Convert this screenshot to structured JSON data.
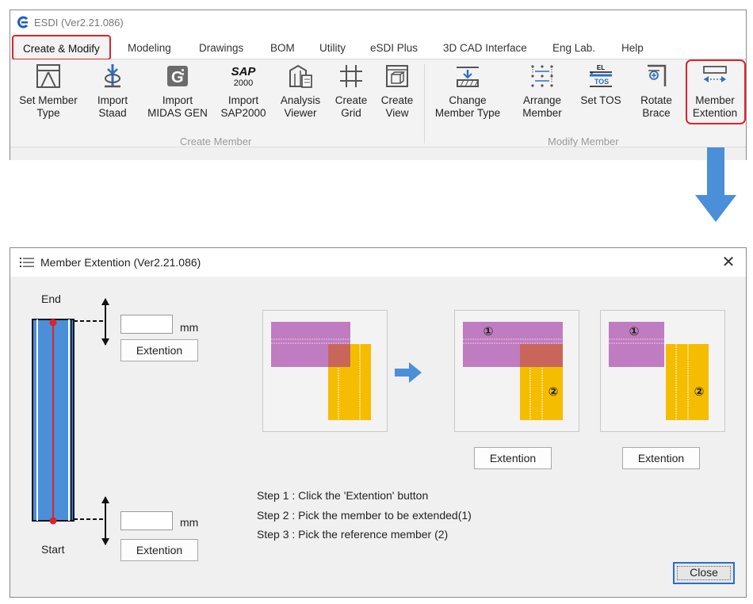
{
  "app": {
    "title": "ESDI (Ver2.21.086)"
  },
  "tabs": [
    {
      "label": "Create & Modify"
    },
    {
      "label": "Modeling"
    },
    {
      "label": "Drawings"
    },
    {
      "label": "BOM"
    },
    {
      "label": "Utility"
    },
    {
      "label": "eSDI Plus"
    },
    {
      "label": "3D CAD Interface"
    },
    {
      "label": "Eng Lab."
    },
    {
      "label": "Help"
    }
  ],
  "groups": {
    "create_member": {
      "label": "Create Member",
      "buttons": [
        {
          "label": "Set Member\nType",
          "icon": "set-member-type-icon"
        },
        {
          "label": "Import\nStaad",
          "icon": "import-staad-icon"
        },
        {
          "label": "Import\nMIDAS GEN",
          "icon": "import-midas-gen-icon"
        },
        {
          "label": "Import\nSAP2000",
          "icon": "import-sap2000-icon"
        },
        {
          "label": "Analysis\nViewer",
          "icon": "analysis-viewer-icon"
        },
        {
          "label": "Create\nGrid",
          "icon": "create-grid-icon"
        },
        {
          "label": "Create\nView",
          "icon": "create-view-icon"
        }
      ]
    },
    "modify_member": {
      "label": "Modify Member",
      "buttons": [
        {
          "label": "Change\nMember Type",
          "icon": "change-member-type-icon"
        },
        {
          "label": "Arrange\nMember",
          "icon": "arrange-member-icon"
        },
        {
          "label": "Set TOS",
          "icon": "set-tos-icon"
        },
        {
          "label": "Rotate\nBrace",
          "icon": "rotate-brace-icon"
        },
        {
          "label": "Member\nExtention",
          "icon": "member-extention-icon"
        }
      ]
    }
  },
  "icon_text": {
    "sap_logo": "SAP",
    "sap_number": "2000",
    "el": "EL",
    "tos": "TOS"
  },
  "dialog": {
    "title": "Member Extention (Ver2.21.086)",
    "end_label": "End",
    "start_label": "Start",
    "unit": "mm",
    "end_value": "",
    "start_value": "",
    "extention_button": "Extention",
    "circle_1": "①",
    "circle_2": "②",
    "steps": [
      "Step 1 : Click the 'Extention' button",
      "Step 2 : Pick the member to be extended(1)",
      "Step 3 : Pick the reference member (2)"
    ],
    "close_button": "Close"
  },
  "colors": {
    "highlight_red": "#e0212b",
    "arrow_blue": "#4a8fd8",
    "member_blue": "#4a8fd8",
    "member_purple": "#c07cc0",
    "member_yellow": "#f5bd00",
    "overlap_red": "#c9665c"
  }
}
